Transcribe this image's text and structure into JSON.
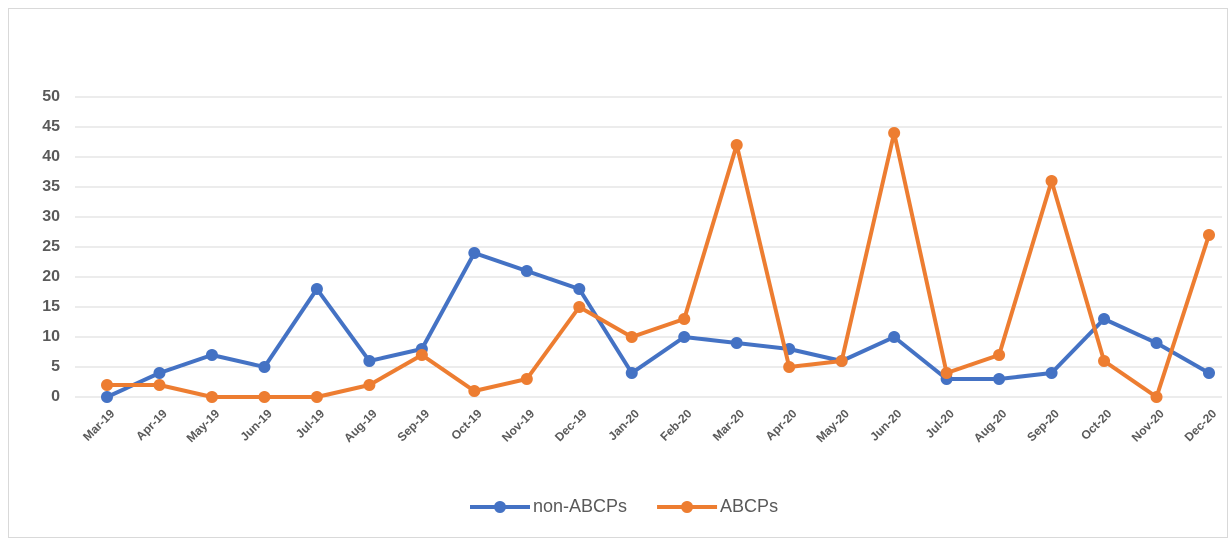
{
  "chart_data": {
    "type": "line",
    "categories": [
      "Mar-19",
      "Apr-19",
      "May-19",
      "Jun-19",
      "Jul-19",
      "Aug-19",
      "Sep-19",
      "Oct-19",
      "Nov-19",
      "Dec-19",
      "Jan-20",
      "Feb-20",
      "Mar-20",
      "Apr-20",
      "May-20",
      "Jun-20",
      "Jul-20",
      "Aug-20",
      "Sep-20",
      "Oct-20",
      "Nov-20",
      "Dec-20"
    ],
    "series": [
      {
        "name": "non-ABCPs",
        "color": "#4472c4",
        "values": [
          0,
          4,
          7,
          5,
          18,
          6,
          8,
          24,
          21,
          18,
          4,
          10,
          9,
          8,
          6,
          10,
          3,
          3,
          4,
          13,
          9,
          4
        ]
      },
      {
        "name": "ABCPs",
        "color": "#ed7d31",
        "values": [
          2,
          2,
          0,
          0,
          0,
          2,
          7,
          1,
          3,
          15,
          10,
          13,
          42,
          5,
          6,
          44,
          4,
          7,
          36,
          6,
          0,
          27
        ]
      }
    ],
    "ylim": [
      0,
      50
    ],
    "yticks": [
      0,
      5,
      10,
      15,
      20,
      25,
      30,
      35,
      40,
      45,
      50
    ],
    "grid": true,
    "legend": "bottom"
  }
}
